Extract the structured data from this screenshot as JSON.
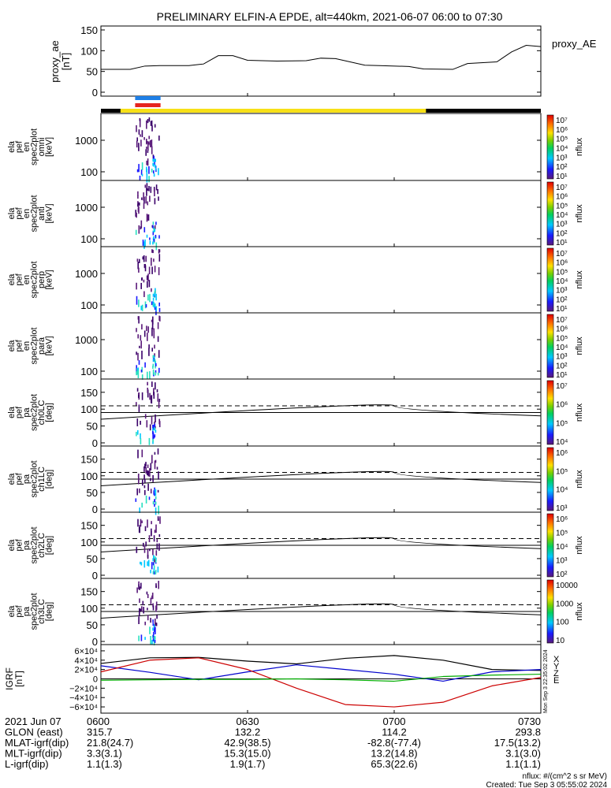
{
  "title": "PRELIMINARY ELFIN-A EPDE, alt=440km, 2021-06-07 06:00 to 07:30",
  "created": "Created: Tue Sep  3 05:55:02 2024",
  "nflux_unit": "nflux: #/(cm^2 s sr MeV)",
  "vertical_stamp": "Mon Sep  3 22:35:02 2024",
  "colors": {
    "blue_bar": "#1e7fe6",
    "red_bar": "#e6241e",
    "yellow_bar": "#f7e017",
    "grf_x": "#000000",
    "grf_y": "#0000cc",
    "grf_z": "#cc0000",
    "grf_e": "#00aa00"
  },
  "panels": [
    {
      "id": "proxy_ae",
      "ylabel": [
        "proxy_ae",
        "[nT]"
      ],
      "right_label": "proxy_AE",
      "ticks": [
        "150",
        "100",
        "50",
        "0"
      ]
    },
    {
      "id": "omni",
      "ylabel": [
        "ela",
        "pef",
        "en",
        "spec2plot",
        "omni",
        "[keV]"
      ],
      "ticks": [
        "1000",
        "100"
      ],
      "cb_ticks": [
        "10⁷",
        "10⁶",
        "10⁵",
        "10⁴",
        "10³",
        "10²",
        "10¹"
      ],
      "cb_label": "nflux"
    },
    {
      "id": "anti",
      "ylabel": [
        "ela",
        "pef",
        "en",
        "spec2plot",
        "anti",
        "[keV]"
      ],
      "ticks": [
        "1000",
        "100"
      ],
      "cb_ticks": [
        "10⁷",
        "10⁶",
        "10⁵",
        "10⁴",
        "10³",
        "10²",
        "10¹"
      ],
      "cb_label": "nflux"
    },
    {
      "id": "perp",
      "ylabel": [
        "ela",
        "pef",
        "en",
        "spec2plot",
        "perp",
        "[keV]"
      ],
      "ticks": [
        "1000",
        "100"
      ],
      "cb_ticks": [
        "10⁷",
        "10⁶",
        "10⁵",
        "10⁴",
        "10³",
        "10²",
        "10¹"
      ],
      "cb_label": "nflux"
    },
    {
      "id": "para",
      "ylabel": [
        "ela",
        "pef",
        "en",
        "spec2plot",
        "para",
        "[keV]"
      ],
      "ticks": [
        "1000",
        "100"
      ],
      "cb_ticks": [
        "10⁷",
        "10⁶",
        "10⁵",
        "10⁴",
        "10³",
        "10²",
        "10¹"
      ],
      "cb_label": "nflux"
    },
    {
      "id": "ch0LC",
      "ylabel": [
        "ela",
        "pef",
        "pa",
        "spec2plot",
        "ch0LC",
        "[deg]"
      ],
      "ticks": [
        "150",
        "100",
        "50",
        "0"
      ],
      "cb_ticks": [
        "10⁷",
        "10⁶",
        "10⁵",
        "10⁴"
      ],
      "cb_label": "nflux"
    },
    {
      "id": "ch1LC",
      "ylabel": [
        "ela",
        "pef",
        "pa",
        "spec2plot",
        "ch1LC",
        "[deg]"
      ],
      "ticks": [
        "150",
        "100",
        "50",
        "0"
      ],
      "cb_ticks": [
        "10⁶",
        "10⁵",
        "10⁴",
        "10³"
      ],
      "cb_label": "nflux"
    },
    {
      "id": "ch2LC",
      "ylabel": [
        "ela",
        "pef",
        "pa",
        "spec2plot",
        "ch2LC",
        "[deg]"
      ],
      "ticks": [
        "150",
        "100",
        "50",
        "0"
      ],
      "cb_ticks": [
        "10⁶",
        "10⁵",
        "10⁴",
        "10³",
        "10²"
      ],
      "cb_label": "nflux"
    },
    {
      "id": "ch3LC",
      "ylabel": [
        "ela",
        "pef",
        "pa",
        "spec2plot",
        "ch3LC",
        "[deg]"
      ],
      "ticks": [
        "150",
        "100",
        "50",
        "0"
      ],
      "cb_ticks": [
        "10000",
        "1000",
        "100",
        "10"
      ],
      "cb_label": "nflux"
    },
    {
      "id": "igrf",
      "ylabel": [
        "IGRF",
        "[nT]"
      ],
      "ticks": [
        "6×10⁴",
        "4×10⁴",
        "2×10⁴",
        "0",
        "−2×10⁴",
        "−4×10⁴",
        "−6×10⁴"
      ],
      "legend": [
        "X",
        "Y",
        "Z",
        "E"
      ]
    }
  ],
  "footer": {
    "rows": [
      {
        "label": "2021 Jun 07",
        "values": [
          "0600",
          "0630",
          "0700",
          "0730"
        ]
      },
      {
        "label": "GLON (east)",
        "values": [
          "315.7",
          "132.2",
          "114.2",
          "293.8"
        ]
      },
      {
        "label": "MLAT-igrf(dip)",
        "values": [
          "21.8(24.7)",
          "42.9(38.5)",
          "-82.8(-77.4)",
          "17.5(13.2)"
        ]
      },
      {
        "label": "MLT-igrf(dip)",
        "values": [
          "3.3(3.1)",
          "15.3(15.0)",
          "13.2(14.8)",
          "3.1(3.0)"
        ]
      },
      {
        "label": "L-igrf(dip)",
        "values": [
          "1.1(1.3)",
          "1.9(1.7)",
          "65.3(22.6)",
          "1.1(1.1)"
        ]
      }
    ]
  },
  "chart_data": {
    "type": "line",
    "time_axis": {
      "start": "06:00",
      "end": "07:30",
      "ticks": [
        "06:00",
        "06:30",
        "07:00",
        "07:30"
      ]
    },
    "proxy_ae": {
      "ylim": [
        0,
        150
      ],
      "x": [
        "06:00",
        "06:06",
        "06:09",
        "06:12",
        "06:18",
        "06:21",
        "06:24",
        "06:27",
        "06:30",
        "06:36",
        "06:42",
        "06:45",
        "06:48",
        "06:54",
        "06:57",
        "07:03",
        "07:06",
        "07:12",
        "07:15",
        "07:21",
        "07:24",
        "07:27",
        "07:30"
      ],
      "values": [
        55,
        55,
        63,
        64,
        64,
        68,
        88,
        88,
        77,
        75,
        76,
        82,
        81,
        65,
        64,
        62,
        56,
        55,
        69,
        73,
        97,
        113,
        110
      ]
    },
    "pitch_angle_lines": {
      "solid_low": [
        70,
        110,
        80
      ],
      "solid_ref": 90,
      "dashed_ref": 110
    },
    "igrf": {
      "ylim": [
        -70000,
        70000
      ],
      "x": [
        "06:00",
        "06:10",
        "06:20",
        "06:30",
        "06:40",
        "06:50",
        "07:00",
        "07:10",
        "07:20",
        "07:30"
      ],
      "series": [
        {
          "name": "X",
          "values": [
            33000,
            45000,
            46000,
            38000,
            32000,
            44000,
            50000,
            40000,
            20000,
            18000
          ]
        },
        {
          "name": "Y",
          "values": [
            28000,
            14000,
            -2000,
            15000,
            30000,
            20000,
            10000,
            -5000,
            15000,
            20000
          ]
        },
        {
          "name": "Z",
          "values": [
            15000,
            40000,
            45000,
            20000,
            -20000,
            -55000,
            -60000,
            -50000,
            -15000,
            3000
          ]
        },
        {
          "name": "E",
          "values": [
            -3000,
            -2000,
            -1000,
            -1000,
            0,
            -2000,
            -5000,
            5000,
            8000,
            10000
          ]
        }
      ]
    },
    "spectrogram_burst": {
      "start": "06:07",
      "end": "06:12"
    }
  }
}
